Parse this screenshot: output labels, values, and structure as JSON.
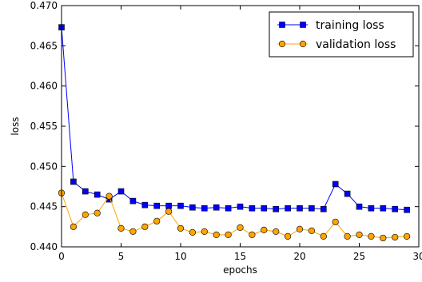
{
  "chart_data": {
    "type": "line",
    "title": "",
    "xlabel": "epochs",
    "ylabel": "loss",
    "xlim": [
      0,
      30
    ],
    "ylim": [
      0.44,
      0.47
    ],
    "xticks": [
      0,
      5,
      10,
      15,
      20,
      25,
      30
    ],
    "xtick_labels": [
      "0",
      "5",
      "10",
      "15",
      "20",
      "25",
      "30"
    ],
    "yticks": [
      0.44,
      0.445,
      0.45,
      0.455,
      0.46,
      0.465,
      0.47
    ],
    "ytick_labels": [
      "0.440",
      "0.445",
      "0.450",
      "0.455",
      "0.460",
      "0.465",
      "0.470"
    ],
    "grid": false,
    "legend_position": "top-right",
    "x": [
      0,
      1,
      2,
      3,
      4,
      5,
      6,
      7,
      8,
      9,
      10,
      11,
      12,
      13,
      14,
      15,
      16,
      17,
      18,
      19,
      20,
      21,
      22,
      23,
      24,
      25,
      26,
      27,
      28,
      29
    ],
    "series": [
      {
        "name": "training loss",
        "color": "#0000ff",
        "marker": "square",
        "values": [
          0.4673,
          0.4481,
          0.4469,
          0.4465,
          0.4459,
          0.4469,
          0.4457,
          0.4452,
          0.4451,
          0.4451,
          0.4451,
          0.4449,
          0.4448,
          0.4449,
          0.4448,
          0.445,
          0.4448,
          0.4448,
          0.4447,
          0.4448,
          0.4448,
          0.4448,
          0.4447,
          0.4478,
          0.4466,
          0.445,
          0.4448,
          0.4448,
          0.4447,
          0.4446
        ]
      },
      {
        "name": "validation loss",
        "color": "#ffa500",
        "marker": "circle",
        "values": [
          0.4467,
          0.4425,
          0.444,
          0.4442,
          0.4463,
          0.4423,
          0.4419,
          0.4425,
          0.4432,
          0.4444,
          0.4423,
          0.4418,
          0.4419,
          0.4415,
          0.4415,
          0.4424,
          0.4415,
          0.4421,
          0.4419,
          0.4413,
          0.4422,
          0.442,
          0.4413,
          0.4431,
          0.4413,
          0.4415,
          0.4413,
          0.4411,
          0.4412,
          0.4413
        ]
      }
    ]
  }
}
